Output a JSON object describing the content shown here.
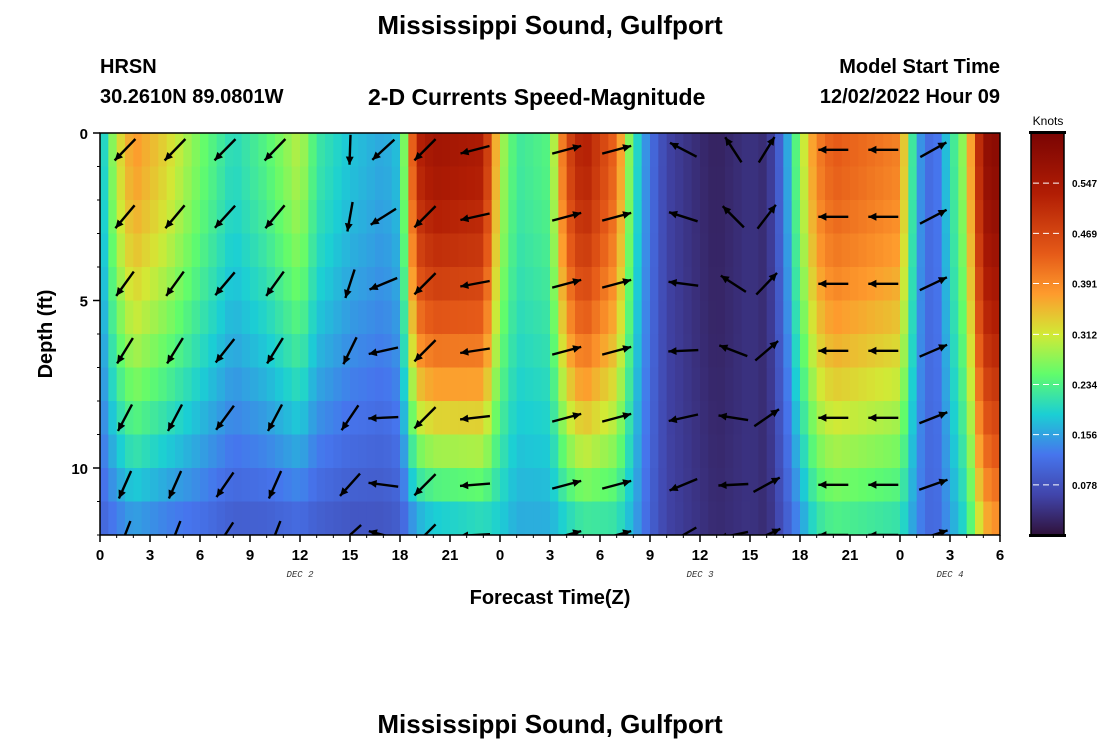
{
  "header": {
    "title": "Mississippi Sound, Gulfport",
    "station": "HRSN",
    "coords": "30.2610N  89.0801W",
    "subtitle": "2-D Currents Speed-Magnitude",
    "model_start_label": "Model Start Time",
    "model_start_value": "12/02/2022 Hour 09"
  },
  "footer": {
    "title": "Mississippi Sound, Gulfport"
  },
  "chart_data": {
    "type": "heatmap",
    "xlabel": "Forecast Time(Z)",
    "ylabel": "Depth (ft)",
    "colorbar_label": "Knots",
    "xlim": [
      0,
      54
    ],
    "ylim": [
      0,
      12
    ],
    "y_inverted": true,
    "x_ticks": [
      0,
      3,
      6,
      9,
      12,
      15,
      18,
      21,
      24,
      27,
      30,
      33,
      36,
      39,
      42,
      45,
      48,
      51,
      54
    ],
    "x_tick_labels": [
      "0",
      "3",
      "6",
      "9",
      "12",
      "15",
      "18",
      "21",
      "0",
      "3",
      "6",
      "9",
      "12",
      "15",
      "18",
      "21",
      "0",
      "3",
      "6"
    ],
    "y_ticks": [
      0,
      5,
      10
    ],
    "y_tick_labels": [
      "0",
      "5",
      "10"
    ],
    "date_labels": [
      {
        "x": 12,
        "text": "DEC 2"
      },
      {
        "x": 36,
        "text": "DEC 3"
      },
      {
        "x": 51,
        "text": "DEC 4"
      }
    ],
    "colorbar_range": [
      0.0,
      0.625
    ],
    "colorbar_ticks": [
      0.078,
      0.156,
      0.234,
      0.312,
      0.391,
      0.469,
      0.547
    ],
    "speed_profile_hours": [
      0,
      1,
      2,
      4,
      6,
      8,
      10,
      12,
      13,
      15,
      17,
      18,
      19,
      20,
      23,
      24,
      25,
      27,
      28,
      29,
      31,
      32,
      33,
      34,
      36,
      37,
      39,
      40,
      41,
      42,
      43,
      44,
      48,
      49,
      50,
      52,
      53,
      54
    ],
    "speed_profile_surface": [
      0.16,
      0.31,
      0.38,
      0.33,
      0.26,
      0.2,
      0.24,
      0.3,
      0.22,
      0.18,
      0.16,
      0.18,
      0.52,
      0.56,
      0.54,
      0.3,
      0.22,
      0.24,
      0.46,
      0.54,
      0.42,
      0.22,
      0.12,
      0.06,
      0.03,
      0.02,
      0.04,
      0.03,
      0.12,
      0.28,
      0.4,
      0.44,
      0.4,
      0.16,
      0.1,
      0.3,
      0.58,
      0.6
    ],
    "speed_profile_bottom": [
      0.1,
      0.12,
      0.14,
      0.12,
      0.11,
      0.09,
      0.09,
      0.1,
      0.09,
      0.08,
      0.08,
      0.09,
      0.14,
      0.16,
      0.18,
      0.18,
      0.16,
      0.16,
      0.18,
      0.2,
      0.2,
      0.16,
      0.1,
      0.06,
      0.04,
      0.03,
      0.04,
      0.03,
      0.08,
      0.14,
      0.2,
      0.22,
      0.2,
      0.14,
      0.1,
      0.2,
      0.34,
      0.38
    ],
    "arrow_hours": [
      1.5,
      4.5,
      7.5,
      10.5,
      15,
      17,
      19.5,
      22.5,
      28,
      31,
      35,
      38,
      40,
      44,
      47,
      50
    ],
    "arrow_depths_ft": [
      0.5,
      2.5,
      4.5,
      6.5,
      8.5,
      10.5,
      12
    ],
    "arrow_direction_deg": [
      225,
      225,
      225,
      225,
      180,
      225,
      225,
      255,
      75,
      75,
      300,
      330,
      30,
      270,
      270,
      60
    ],
    "arrow_depth_turning_deg_per_ft": [
      -2,
      -2,
      -1,
      -2,
      4,
      5,
      0,
      1,
      0,
      0,
      -5,
      -6,
      3,
      0,
      0,
      1
    ]
  }
}
